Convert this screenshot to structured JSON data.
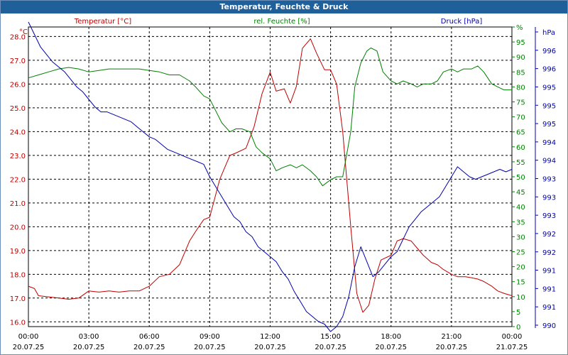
{
  "window": {
    "title": "Temperatur, Feuchte & Druck"
  },
  "chart_data": {
    "type": "line",
    "grid": true,
    "x_ticks": [
      {
        "time": "00:00",
        "date": "20.07.25"
      },
      {
        "time": "03:00",
        "date": "20.07.25"
      },
      {
        "time": "06:00",
        "date": "20.07.25"
      },
      {
        "time": "09:00",
        "date": "20.07.25"
      },
      {
        "time": "12:00",
        "date": "20.07.25"
      },
      {
        "time": "15:00",
        "date": "20.07.25"
      },
      {
        "time": "18:00",
        "date": "20.07.25"
      },
      {
        "time": "21:00",
        "date": "20.07.25"
      },
      {
        "time": "00:00",
        "date": "21.07.25"
      }
    ],
    "xlim_hours": [
      0,
      24
    ],
    "axes": {
      "temperature": {
        "title": "Temperatur [°C]",
        "unit": "°C",
        "min": 15.8,
        "max": 28.4,
        "ticks": [
          "16.0",
          "17.0",
          "18.0",
          "19.0",
          "20.0",
          "21.0",
          "22.0",
          "23.0",
          "24.0",
          "25.0",
          "26.0",
          "27.0",
          "28.0"
        ],
        "color": "#c00000"
      },
      "humidity": {
        "title": "rel. Feuchte [%]",
        "unit": "%",
        "min": 0,
        "max": 100,
        "ticks": [
          "0",
          "5",
          "10",
          "15",
          "20",
          "25",
          "30",
          "35",
          "40",
          "45",
          "50",
          "55",
          "60",
          "65",
          "70",
          "75",
          "80",
          "85",
          "90",
          "95",
          "%"
        ],
        "color": "#008000"
      },
      "pressure": {
        "title": "Druck [hPa]",
        "unit": "hPa",
        "min": 990,
        "max": 996,
        "ticks": [
          "990",
          "991",
          "991",
          "991",
          "992",
          "992",
          "993",
          "993",
          "993",
          "994",
          "994",
          "995",
          "995",
          "995",
          "996",
          "996",
          "hPa"
        ],
        "color": "#0000b0"
      }
    },
    "series": [
      {
        "name": "Temperatur [°C]",
        "axis": "temperature",
        "color": "#c00000",
        "x": [
          0,
          0.3,
          0.5,
          1,
          1.5,
          2,
          2.5,
          3,
          3.5,
          4,
          4.5,
          5,
          5.5,
          6,
          6.5,
          7,
          7.5,
          8,
          8.3,
          8.7,
          9,
          9.5,
          10,
          10.3,
          10.8,
          11.2,
          11.6,
          12,
          12.3,
          12.7,
          13,
          13.3,
          13.6,
          14,
          14.3,
          14.7,
          15,
          15.3,
          15.6,
          16,
          16.3,
          16.6,
          16.9,
          17.2,
          17.5,
          18,
          18.3,
          18.6,
          19,
          19.3,
          19.6,
          20,
          20.3,
          20.6,
          21,
          21.3,
          21.7,
          22,
          22.3,
          22.6,
          23,
          23.3,
          23.6,
          24
        ],
        "y": [
          17.5,
          17.4,
          17.1,
          17.05,
          17.0,
          16.95,
          17.0,
          17.3,
          17.25,
          17.3,
          17.25,
          17.3,
          17.3,
          17.5,
          17.9,
          18.0,
          18.4,
          19.4,
          19.8,
          20.3,
          20.4,
          22.0,
          23.0,
          23.1,
          23.3,
          24.2,
          25.6,
          26.5,
          25.7,
          25.8,
          25.2,
          25.9,
          27.5,
          27.9,
          27.3,
          26.6,
          26.6,
          26.0,
          24.0,
          20.0,
          17.2,
          16.4,
          16.7,
          17.8,
          18.6,
          18.8,
          19.4,
          19.5,
          19.4,
          19.1,
          18.8,
          18.5,
          18.4,
          18.2,
          18.0,
          17.9,
          17.9,
          17.85,
          17.8,
          17.7,
          17.5,
          17.3,
          17.2,
          17.1
        ]
      },
      {
        "name": "rel. Feuchte [%]",
        "axis": "humidity",
        "color": "#008000",
        "x": [
          0,
          0.5,
          1,
          1.5,
          2,
          2.5,
          3,
          3.5,
          4,
          4.5,
          5,
          5.5,
          6,
          6.5,
          7,
          7.5,
          8,
          8.3,
          8.7,
          9,
          9.3,
          9.6,
          10,
          10.3,
          10.6,
          11,
          11.3,
          11.6,
          12,
          12.3,
          12.6,
          13,
          13.3,
          13.6,
          14,
          14.3,
          14.6,
          15,
          15.3,
          15.6,
          16,
          16.2,
          16.5,
          16.8,
          17,
          17.3,
          17.6,
          18,
          18.3,
          18.6,
          19,
          19.3,
          19.6,
          20,
          20.3,
          20.6,
          21,
          21.3,
          21.6,
          22,
          22.3,
          22.6,
          23,
          23.3,
          23.6,
          24
        ],
        "y": [
          83,
          84,
          85,
          86,
          86.5,
          86,
          85,
          85.5,
          86,
          86,
          86,
          86,
          85.5,
          85,
          84,
          84,
          82,
          80,
          77,
          76,
          72,
          68,
          65,
          66,
          66,
          65,
          60,
          58,
          56,
          52,
          53,
          54,
          53,
          54,
          52,
          50,
          47,
          49,
          50,
          50,
          65,
          80,
          88,
          92,
          93,
          92,
          85,
          82,
          81,
          82,
          81,
          80,
          81,
          81,
          82,
          85,
          86,
          85,
          86,
          86,
          87,
          85,
          81,
          80,
          79,
          79
        ]
      },
      {
        "name": "Druck [hPa]",
        "axis": "pressure",
        "color": "#0000b0",
        "x": [
          0,
          0.3,
          0.6,
          0.9,
          1.2,
          1.5,
          1.8,
          2.1,
          2.4,
          2.7,
          3,
          3.3,
          3.6,
          3.9,
          4.2,
          4.5,
          4.8,
          5.1,
          5.4,
          5.7,
          6,
          6.3,
          6.6,
          6.9,
          7.2,
          7.5,
          7.8,
          8.1,
          8.4,
          8.7,
          9,
          9.3,
          9.6,
          9.9,
          10.2,
          10.5,
          10.8,
          11.1,
          11.4,
          11.7,
          12,
          12.3,
          12.6,
          12.9,
          13.2,
          13.5,
          13.8,
          14.1,
          14.4,
          14.7,
          15,
          15.3,
          15.6,
          15.9,
          16.2,
          16.5,
          16.8,
          17.1,
          17.4,
          17.7,
          18,
          18.3,
          18.6,
          18.9,
          19.2,
          19.5,
          19.8,
          20.1,
          20.4,
          20.7,
          21,
          21.3,
          21.6,
          21.9,
          22.2,
          22.5,
          22.8,
          23.1,
          23.4,
          23.7,
          24
        ],
        "y": [
          996.1,
          995.85,
          995.6,
          995.45,
          995.3,
          995.2,
          995.1,
          994.95,
          994.8,
          994.7,
          994.55,
          994.4,
          994.3,
          994.3,
          994.25,
          994.2,
          994.15,
          994.1,
          994.0,
          993.9,
          993.8,
          993.75,
          993.65,
          993.55,
          993.5,
          993.45,
          993.4,
          993.35,
          993.3,
          993.25,
          993.0,
          992.8,
          992.6,
          992.4,
          992.2,
          992.1,
          991.9,
          991.8,
          991.6,
          991.5,
          991.4,
          991.3,
          991.1,
          990.95,
          990.7,
          990.5,
          990.3,
          990.2,
          990.1,
          990.05,
          989.9,
          990.0,
          990.2,
          990.6,
          991.2,
          991.6,
          991.3,
          991.0,
          991.1,
          991.25,
          991.4,
          991.5,
          991.75,
          992.0,
          992.15,
          992.3,
          992.4,
          992.5,
          992.6,
          992.8,
          993.0,
          993.2,
          993.1,
          993.0,
          992.95,
          993.0,
          993.05,
          993.1,
          993.15,
          993.1,
          993.15
        ]
      }
    ]
  }
}
